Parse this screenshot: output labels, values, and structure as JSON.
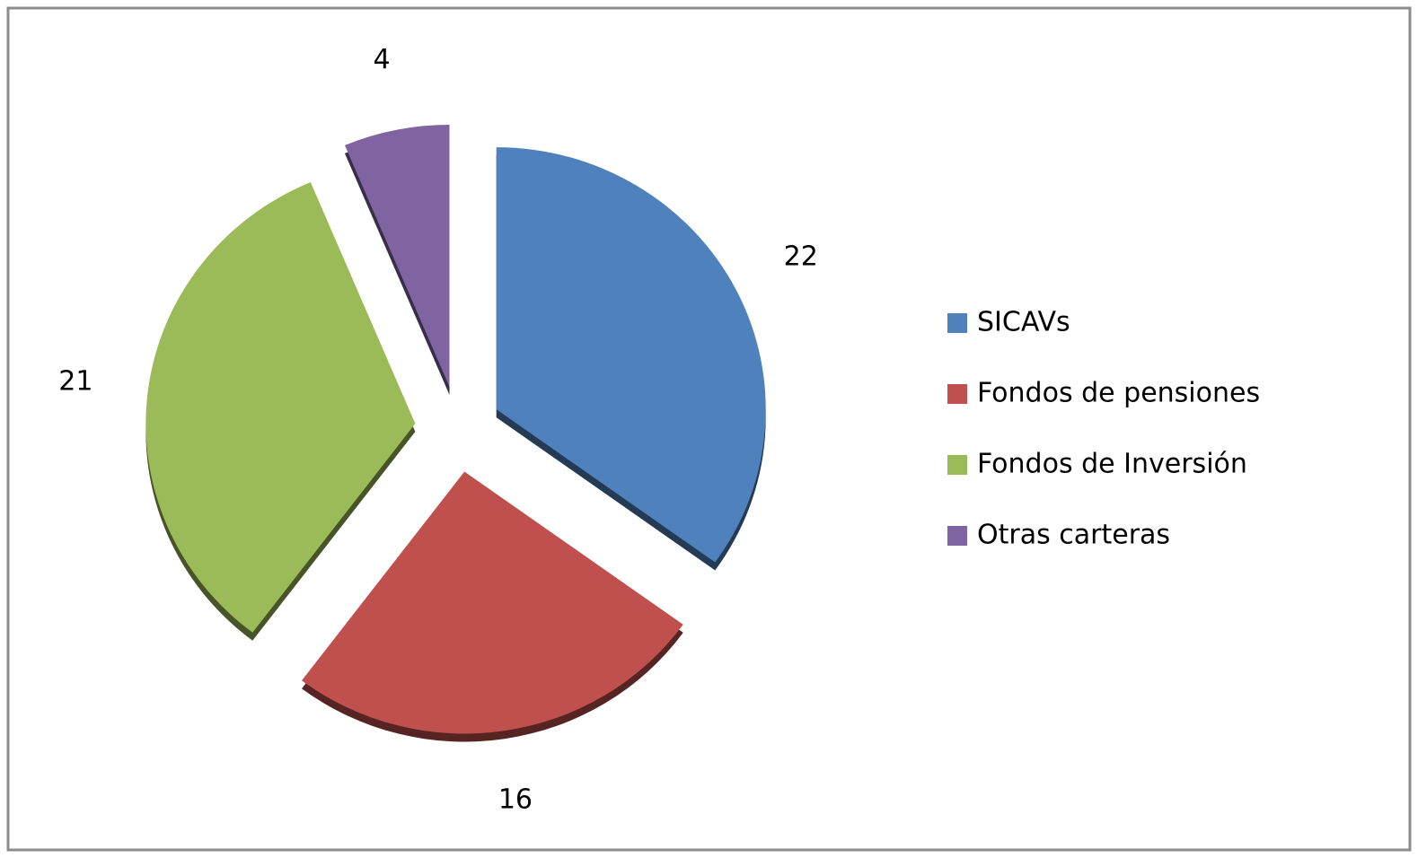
{
  "chart_data": {
    "type": "pie",
    "categories": [
      "SICAVs",
      "Fondos de pensiones",
      "Fondos de Inversión",
      "Otras carteras"
    ],
    "values": [
      22,
      16,
      21,
      4
    ],
    "colors": [
      "#4f81bd",
      "#c0504d",
      "#9bbb59",
      "#8064a2"
    ],
    "legend": "right"
  }
}
